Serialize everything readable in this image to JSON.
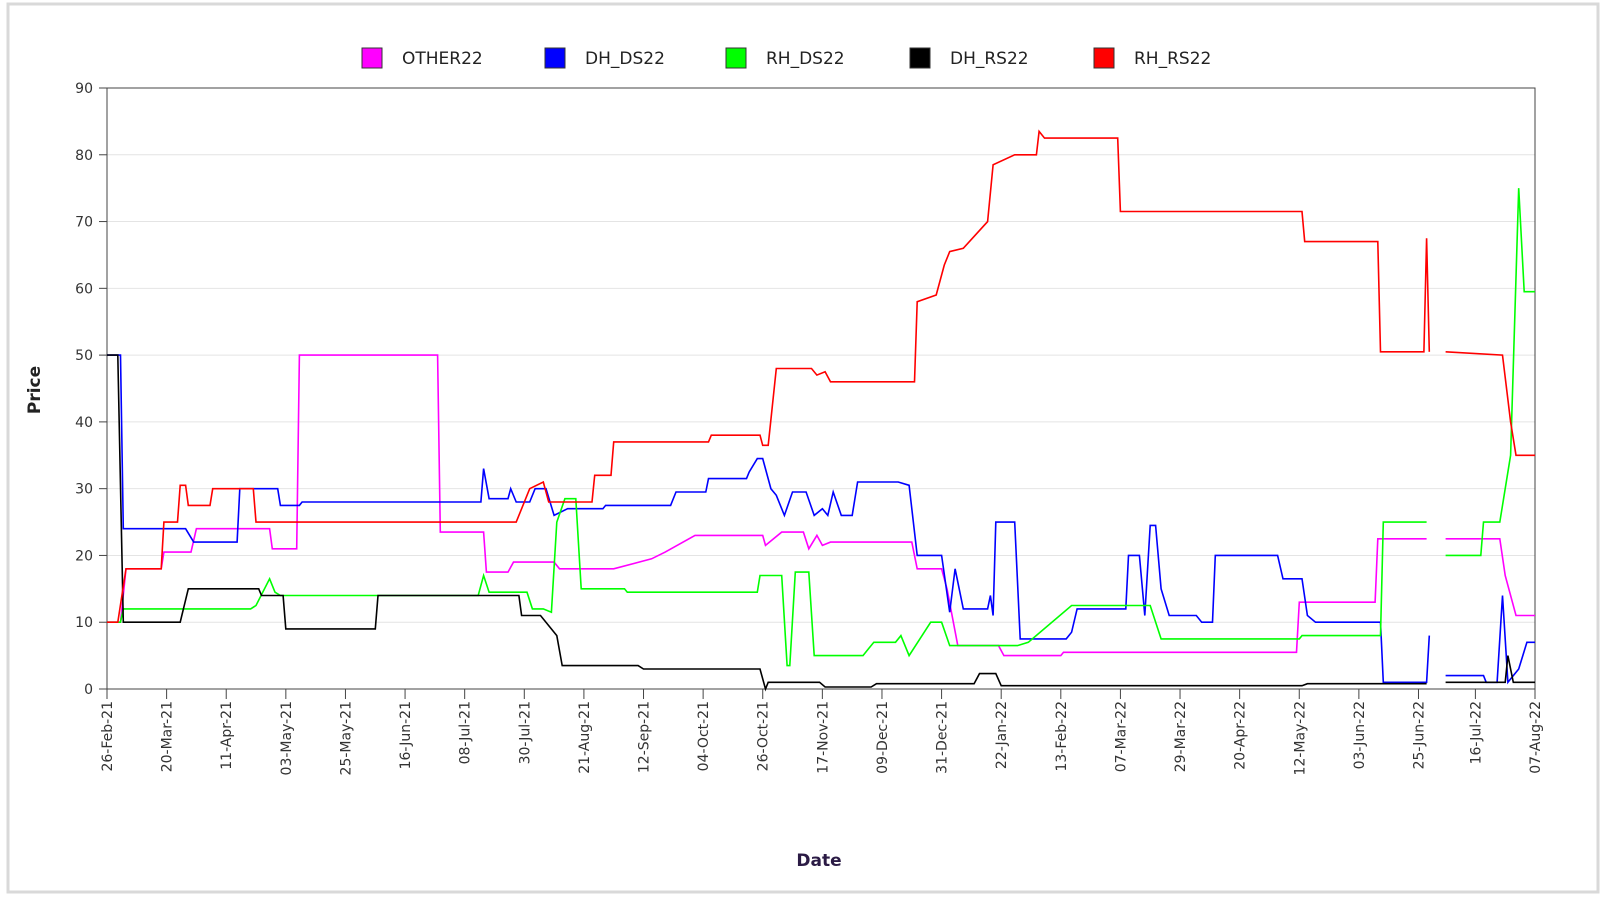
{
  "chart_data": {
    "type": "line",
    "xlabel": "Date",
    "ylabel": "Price",
    "legend": "top",
    "grid": true,
    "xlim": [
      "2021-02-26",
      "2022-08-07"
    ],
    "xticks": [
      {
        "value": "2021-02-26",
        "label": "26-Feb-21"
      },
      {
        "value": "2021-03-20",
        "label": "20-Mar-21"
      },
      {
        "value": "2021-04-11",
        "label": "11-Apr-21"
      },
      {
        "value": "2021-05-03",
        "label": "03-May-21"
      },
      {
        "value": "2021-05-25",
        "label": "25-May-21"
      },
      {
        "value": "2021-06-16",
        "label": "16-Jun-21"
      },
      {
        "value": "2021-07-08",
        "label": "08-Jul-21"
      },
      {
        "value": "2021-07-30",
        "label": "30-Jul-21"
      },
      {
        "value": "2021-08-21",
        "label": "21-Aug-21"
      },
      {
        "value": "2021-09-12",
        "label": "12-Sep-21"
      },
      {
        "value": "2021-10-04",
        "label": "04-Oct-21"
      },
      {
        "value": "2021-10-26",
        "label": "26-Oct-21"
      },
      {
        "value": "2021-11-17",
        "label": "17-Nov-21"
      },
      {
        "value": "2021-12-09",
        "label": "09-Dec-21"
      },
      {
        "value": "2021-12-31",
        "label": "31-Dec-21"
      },
      {
        "value": "2022-01-22",
        "label": "22-Jan-22"
      },
      {
        "value": "2022-02-13",
        "label": "13-Feb-22"
      },
      {
        "value": "2022-03-07",
        "label": "07-Mar-22"
      },
      {
        "value": "2022-03-29",
        "label": "29-Mar-22"
      },
      {
        "value": "2022-04-20",
        "label": "20-Apr-22"
      },
      {
        "value": "2022-05-12",
        "label": "12-May-22"
      },
      {
        "value": "2022-06-03",
        "label": "03-Jun-22"
      },
      {
        "value": "2022-06-25",
        "label": "25-Jun-22"
      },
      {
        "value": "2022-07-16",
        "label": "16-Jul-22"
      },
      {
        "value": "2022-08-07",
        "label": "07-Aug-22"
      }
    ],
    "ylim": [
      0,
      90
    ],
    "yticks": [
      0,
      10,
      20,
      30,
      40,
      50,
      60,
      70,
      80,
      90
    ],
    "series": [
      {
        "name": "OTHER22",
        "color": "#ff00ff",
        "x": [
          "2021-02-26",
          "2021-03-03",
          "2021-03-05",
          "2021-03-18",
          "2021-03-19",
          "2021-03-29",
          "2021-03-31",
          "2021-04-27",
          "2021-04-28",
          "2021-05-07",
          "2021-05-08",
          "2021-06-28",
          "2021-06-29",
          "2021-07-15",
          "2021-07-16",
          "2021-07-24",
          "2021-07-26",
          "2021-08-10",
          "2021-08-12",
          "2021-09-01",
          "2021-09-15",
          "2021-09-20",
          "2021-10-01",
          "2021-10-26",
          "2021-10-27",
          "2021-11-02",
          "2021-11-10",
          "2021-11-12",
          "2021-11-15",
          "2021-11-17",
          "2021-11-20",
          "2021-12-20",
          "2021-12-22",
          "2021-12-31",
          "2022-01-02",
          "2022-01-06",
          "2022-01-21",
          "2022-01-23",
          "2022-02-13",
          "2022-02-14",
          "2022-05-11",
          "2022-05-12",
          "2022-06-09",
          "2022-06-10",
          "2022-06-28",
          null,
          "2022-07-05",
          "2022-07-25",
          "2022-07-27",
          "2022-07-31",
          "2022-08-07"
        ],
        "values": [
          10,
          10,
          18,
          18,
          20.5,
          20.5,
          24,
          24,
          21,
          21,
          50,
          50,
          23.5,
          23.5,
          17.5,
          17.5,
          19,
          19,
          18,
          18,
          19.5,
          20.5,
          23,
          23,
          21.5,
          23.5,
          23.5,
          21,
          23,
          21.5,
          22,
          22,
          18,
          18,
          15,
          6.5,
          6.5,
          5,
          5,
          5.5,
          5.5,
          13,
          13,
          22.5,
          22.5,
          null,
          22.5,
          22.5,
          17,
          11,
          11
        ]
      },
      {
        "name": "DH_DS22",
        "color": "#0000ff",
        "x": [
          "2021-02-26",
          "2021-03-03",
          "2021-03-04",
          "2021-03-27",
          "2021-03-30",
          "2021-04-15",
          "2021-04-16",
          "2021-04-30",
          "2021-05-01",
          "2021-05-08",
          "2021-05-09",
          "2021-07-14",
          "2021-07-15",
          "2021-07-17",
          "2021-07-24",
          "2021-07-25",
          "2021-07-27",
          "2021-08-01",
          "2021-08-03",
          "2021-08-07",
          "2021-08-10",
          "2021-08-15",
          "2021-08-28",
          "2021-08-29",
          "2021-09-22",
          "2021-09-24",
          "2021-10-05",
          "2021-10-06",
          "2021-10-20",
          "2021-10-21",
          "2021-10-24",
          "2021-10-26",
          "2021-10-29",
          "2021-10-31",
          "2021-11-03",
          "2021-11-06",
          "2021-11-11",
          "2021-11-14",
          "2021-11-17",
          "2021-11-19",
          "2021-11-21",
          "2021-11-24",
          "2021-11-28",
          "2021-11-30",
          "2021-12-15",
          "2021-12-19",
          "2021-12-22",
          "2021-12-31",
          "2022-01-03",
          "2022-01-05",
          "2022-01-08",
          "2022-01-17",
          "2022-01-18",
          "2022-01-19",
          "2022-01-20",
          "2022-01-27",
          "2022-01-29",
          "2022-02-15",
          "2022-02-17",
          "2022-02-19",
          "2022-03-09",
          "2022-03-10",
          "2022-03-14",
          "2022-03-16",
          "2022-03-18",
          "2022-03-20",
          "2022-03-22",
          "2022-03-25",
          "2022-04-04",
          "2022-04-06",
          "2022-04-10",
          "2022-04-11",
          "2022-05-04",
          "2022-05-06",
          "2022-05-13",
          "2022-05-15",
          "2022-05-18",
          "2022-06-11",
          "2022-06-12",
          "2022-06-28",
          "2022-06-29",
          null,
          "2022-07-05",
          "2022-07-19",
          "2022-07-20",
          "2022-07-24",
          "2022-07-26",
          "2022-07-28",
          "2022-08-01",
          "2022-08-04",
          "2022-08-07"
        ],
        "values": [
          50,
          50,
          24,
          24,
          22,
          22,
          30,
          30,
          27.5,
          27.5,
          28,
          28,
          33,
          28.5,
          28.5,
          30,
          28,
          28,
          30,
          30,
          26,
          27,
          27,
          27.5,
          27.5,
          29.5,
          29.5,
          31.5,
          31.5,
          32.5,
          34.5,
          34.5,
          30,
          29,
          26,
          29.5,
          29.5,
          26,
          27,
          26,
          29.5,
          26,
          26,
          31,
          31,
          30.5,
          20,
          20,
          11.5,
          18,
          12,
          12,
          14,
          11,
          25,
          25,
          7.5,
          7.5,
          8.5,
          12,
          12,
          20,
          20,
          11,
          24.5,
          24.5,
          15,
          11,
          11,
          10,
          10,
          20,
          20,
          16.5,
          16.5,
          11,
          10,
          10,
          1,
          1,
          8,
          null,
          2,
          2,
          1,
          1,
          14,
          1,
          3,
          7,
          7
        ]
      },
      {
        "name": "RH_DS22",
        "color": "#00ff00",
        "x": [
          "2021-02-26",
          "2021-03-03",
          "2021-03-04",
          "2021-04-20",
          "2021-04-22",
          "2021-04-27",
          "2021-04-29",
          "2021-05-01",
          "2021-07-13",
          "2021-07-15",
          "2021-07-17",
          "2021-07-31",
          "2021-08-02",
          "2021-08-06",
          "2021-08-09",
          "2021-08-11",
          "2021-08-14",
          "2021-08-18",
          "2021-08-20",
          "2021-09-05",
          "2021-09-06",
          "2021-10-24",
          "2021-10-25",
          "2021-11-02",
          "2021-11-04",
          "2021-11-05",
          "2021-11-07",
          "2021-11-12",
          "2021-11-14",
          "2021-12-02",
          "2021-12-04",
          "2021-12-06",
          "2021-12-14",
          "2021-12-16",
          "2021-12-19",
          "2021-12-27",
          "2021-12-31",
          "2022-01-03",
          "2022-01-28",
          "2022-02-01",
          "2022-02-17",
          "2022-03-18",
          "2022-03-22",
          "2022-05-12",
          "2022-05-13",
          "2022-06-11",
          "2022-06-12",
          "2022-06-28",
          null,
          "2022-07-05",
          "2022-07-18",
          "2022-07-19",
          "2022-07-25",
          "2022-07-29",
          "2022-08-01",
          "2022-08-03",
          "2022-08-07"
        ],
        "values": [
          10,
          10,
          12,
          12,
          12.5,
          16.5,
          14.5,
          14,
          14,
          17,
          14.5,
          14.5,
          12,
          12,
          11.5,
          25,
          28.5,
          28.5,
          15,
          15,
          14.5,
          14.5,
          17,
          17,
          3.5,
          3.5,
          17.5,
          17.5,
          5,
          5,
          6,
          7,
          7,
          8,
          5,
          10,
          10,
          6.5,
          6.5,
          7,
          12.5,
          12.5,
          7.5,
          7.5,
          8,
          8,
          25,
          25,
          null,
          20,
          20,
          25,
          25,
          35,
          75,
          59.5,
          59.5
        ]
      },
      {
        "name": "DH_RS22",
        "color": "#000000",
        "x": [
          "2021-02-26",
          "2021-03-02",
          "2021-03-04",
          "2021-03-25",
          "2021-03-28",
          "2021-04-23",
          "2021-04-24",
          "2021-05-02",
          "2021-05-03",
          "2021-06-05",
          "2021-06-06",
          "2021-07-28",
          "2021-07-29",
          "2021-08-05",
          "2021-08-11",
          "2021-08-13",
          "2021-09-10",
          "2021-09-12",
          "2021-10-25",
          "2021-10-27",
          "2021-10-28",
          "2021-11-16",
          "2021-11-18",
          "2021-12-05",
          "2021-12-07",
          "2022-01-12",
          "2022-01-14",
          "2022-01-20",
          "2022-01-22",
          "2022-05-13",
          "2022-05-15",
          "2022-06-28",
          null,
          "2022-07-05",
          "2022-07-27",
          "2022-07-28",
          "2022-07-30",
          "2022-08-07"
        ],
        "values": [
          50,
          50,
          10,
          10,
          15,
          15,
          14,
          14,
          9,
          9,
          14,
          14,
          11,
          11,
          8,
          3.5,
          3.5,
          3,
          3,
          0,
          1,
          1,
          0.3,
          0.3,
          0.8,
          0.8,
          2.3,
          2.3,
          0.5,
          0.5,
          0.8,
          0.8,
          null,
          1,
          1,
          5,
          1,
          1
        ]
      },
      {
        "name": "RH_RS22",
        "color": "#ff0000",
        "x": [
          "2021-02-26",
          "2021-03-02",
          "2021-03-05",
          "2021-03-18",
          "2021-03-19",
          "2021-03-24",
          "2021-03-25",
          "2021-03-27",
          "2021-03-28",
          "2021-04-05",
          "2021-04-06",
          "2021-04-21",
          "2021-04-22",
          "2021-07-27",
          "2021-08-01",
          "2021-08-06",
          "2021-08-08",
          "2021-08-24",
          "2021-08-25",
          "2021-08-31",
          "2021-09-01",
          "2021-10-06",
          "2021-10-07",
          "2021-10-25",
          "2021-10-26",
          "2021-10-28",
          "2021-10-31",
          "2021-11-13",
          "2021-11-15",
          "2021-11-18",
          "2021-11-20",
          "2021-12-21",
          "2021-12-22",
          "2021-12-29",
          "2022-01-01",
          "2022-01-03",
          "2022-01-08",
          "2022-01-17",
          "2022-01-19",
          "2022-01-27",
          "2022-02-04",
          "2022-02-05",
          "2022-02-07",
          "2022-03-06",
          "2022-03-07",
          "2022-05-13",
          "2022-05-14",
          "2022-06-10",
          "2022-06-11",
          "2022-06-27",
          "2022-06-28",
          "2022-06-29",
          null,
          "2022-07-05",
          "2022-07-26",
          "2022-07-29",
          "2022-07-31",
          "2022-08-07"
        ],
        "values": [
          10,
          10,
          18,
          18,
          25,
          25,
          30.5,
          30.5,
          27.5,
          27.5,
          30,
          30,
          25,
          25,
          30,
          31,
          28,
          28,
          32,
          32,
          37,
          37,
          38,
          38,
          36.5,
          36.5,
          48,
          48,
          47,
          47.5,
          46,
          46,
          58,
          59,
          63.5,
          65.5,
          66,
          70,
          78.5,
          80,
          80,
          83.5,
          82.5,
          82.5,
          71.5,
          71.5,
          67,
          67,
          50.5,
          50.5,
          67.5,
          50.5,
          null,
          50.5,
          50,
          40,
          35,
          35
        ]
      }
    ]
  }
}
